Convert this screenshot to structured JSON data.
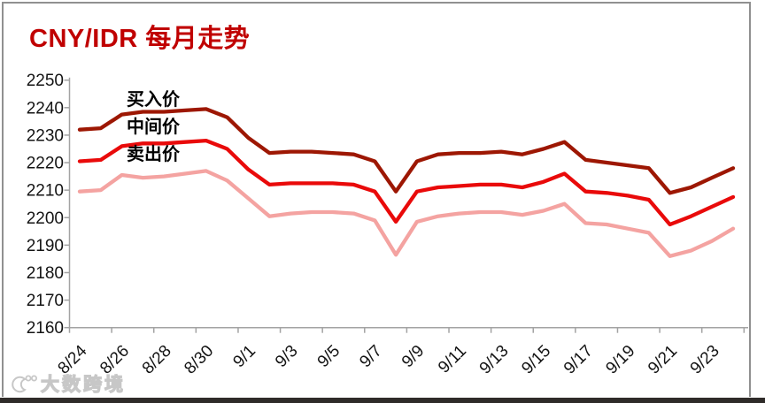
{
  "title": "CNY/IDR 每月走势",
  "title_color": "#C00000",
  "watermark": {
    "text": "大数跨境"
  },
  "chart_data": {
    "type": "line",
    "title": "CNY/IDR 每月走势",
    "xlabel": "",
    "ylabel": "",
    "ylim": [
      2160,
      2250
    ],
    "ytick_step": 10,
    "ytick_labels": [
      "2160",
      "2170",
      "2180",
      "2190",
      "2200",
      "2210",
      "2220",
      "2230",
      "2240",
      "2250"
    ],
    "grid": false,
    "legend_position": "inline-labels-top-left",
    "x": [
      "8/24",
      "8/25",
      "8/26",
      "8/27",
      "8/28",
      "8/29",
      "8/30",
      "8/31",
      "9/1",
      "9/2",
      "9/3",
      "9/4",
      "9/5",
      "9/6",
      "9/7",
      "9/8",
      "9/9",
      "9/10",
      "9/11",
      "9/12",
      "9/13",
      "9/14",
      "9/15",
      "9/16",
      "9/17",
      "9/18",
      "9/19",
      "9/20",
      "9/21",
      "9/22",
      "9/23",
      "9/24"
    ],
    "xtick_labels": [
      "8/24",
      "8/26",
      "8/28",
      "8/30",
      "9/1",
      "9/3",
      "9/5",
      "9/7",
      "9/9",
      "9/11",
      "9/13",
      "9/15",
      "9/17",
      "9/19",
      "9/21",
      "9/23"
    ],
    "series": [
      {
        "name": "买入价",
        "color": "#9D1703",
        "values": [
          2232,
          2232.5,
          2237.5,
          2238.5,
          2238.5,
          2239,
          2239.5,
          2236.5,
          2229,
          2223.5,
          2224,
          2224,
          2223.5,
          2223,
          2220.5,
          2209.5,
          2220.5,
          2223,
          2223.5,
          2223.5,
          2224,
          2223,
          2225,
          2227.5,
          2221,
          2220,
          2219,
          2218,
          2209,
          2211,
          2214.5,
          2218
        ]
      },
      {
        "name": "中间价",
        "color": "#E90A0A",
        "values": [
          2220.5,
          2221,
          2226,
          2227,
          2227,
          2227.5,
          2228,
          2225,
          2217.5,
          2212,
          2212.5,
          2212.5,
          2212.5,
          2212,
          2209.5,
          2198.5,
          2209.5,
          2211,
          2211.5,
          2212,
          2212,
          2211,
          2213,
          2216,
          2209.5,
          2209,
          2208,
          2206.5,
          2197.5,
          2200.5,
          2204,
          2207.5
        ]
      },
      {
        "name": "卖出价",
        "color": "#F4A3A1",
        "values": [
          2209.5,
          2210,
          2215.5,
          2214.5,
          2215,
          2216,
          2217,
          2213.5,
          2207,
          2200.5,
          2201.5,
          2202,
          2202,
          2201.5,
          2199,
          2186.5,
          2198.5,
          2200.5,
          2201.5,
          2202,
          2202,
          2201,
          2202.5,
          2205,
          2198,
          2197.5,
          2196,
          2194.5,
          2186,
          2188,
          2191.5,
          2196
        ]
      }
    ],
    "axis_color": "#A3A3A3",
    "tick_label_color": "#141414"
  }
}
